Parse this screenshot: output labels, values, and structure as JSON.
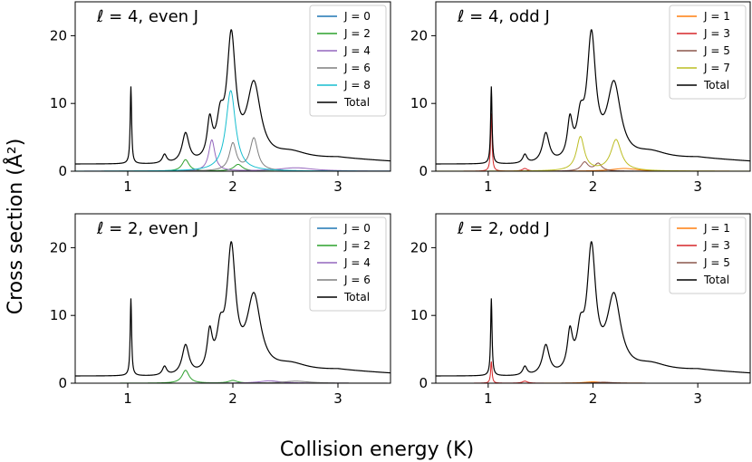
{
  "figure": {
    "ylabel": "Cross section (Å²)",
    "xlabel": "Collision energy (K)"
  },
  "chart_data": [
    {
      "type": "line",
      "title": "ℓ = 4, even J",
      "xlim": [
        0.5,
        3.5
      ],
      "ylim": [
        0,
        25
      ],
      "xticks": [
        1,
        2,
        3
      ],
      "yticks": [
        0,
        10,
        20
      ],
      "legend_position": "top-right",
      "series": [
        {
          "name": "J = 0",
          "color": "#1f77b4",
          "peaks": []
        },
        {
          "name": "J = 2",
          "color": "#2ca02c",
          "peaks": [
            [
              1.55,
              1.7,
              0.04
            ],
            [
              2.05,
              1.0,
              0.05
            ]
          ]
        },
        {
          "name": "J = 4",
          "color": "#9467bd",
          "peaks": [
            [
              1.8,
              4.6,
              0.035
            ],
            [
              2.6,
              0.5,
              0.2
            ]
          ]
        },
        {
          "name": "J = 6",
          "color": "#7f7f7f",
          "peaks": [
            [
              2.0,
              4.0,
              0.04
            ],
            [
              2.2,
              4.8,
              0.045
            ]
          ]
        },
        {
          "name": "J = 8",
          "color": "#17becf",
          "peaks": [
            [
              1.98,
              11.9,
              0.055
            ]
          ]
        },
        {
          "name": "Total",
          "color": "#000000",
          "total": true
        }
      ]
    },
    {
      "type": "line",
      "title": "ℓ = 4, odd J",
      "xlim": [
        0.5,
        3.5
      ],
      "ylim": [
        0,
        25
      ],
      "xticks": [
        1,
        2,
        3
      ],
      "yticks": [
        0,
        10,
        20
      ],
      "legend_position": "top-right",
      "series": [
        {
          "name": "J = 1",
          "color": "#ff7f0e",
          "peaks": [
            [
              2.3,
              0.4,
              0.15
            ]
          ]
        },
        {
          "name": "J = 3",
          "color": "#d62728",
          "peaks": [
            [
              1.03,
              8.5,
              0.008
            ],
            [
              1.35,
              0.4,
              0.03
            ]
          ]
        },
        {
          "name": "J = 5",
          "color": "#8c564b",
          "peaks": [
            [
              1.92,
              1.3,
              0.04
            ],
            [
              2.05,
              1.1,
              0.04
            ]
          ]
        },
        {
          "name": "J = 7",
          "color": "#bcbd22",
          "peaks": [
            [
              1.88,
              5.0,
              0.045
            ],
            [
              2.22,
              4.6,
              0.06
            ]
          ]
        },
        {
          "name": "Total",
          "color": "#000000",
          "total": true
        }
      ]
    },
    {
      "type": "line",
      "title": "ℓ = 2, even J",
      "xlim": [
        0.5,
        3.5
      ],
      "ylim": [
        0,
        25
      ],
      "xticks": [
        1,
        2,
        3
      ],
      "yticks": [
        0,
        10,
        20
      ],
      "legend_position": "top-right",
      "series": [
        {
          "name": "J = 0",
          "color": "#1f77b4",
          "peaks": []
        },
        {
          "name": "J = 2",
          "color": "#2ca02c",
          "peaks": [
            [
              1.55,
              1.9,
              0.04
            ],
            [
              2.0,
              0.4,
              0.05
            ]
          ]
        },
        {
          "name": "J = 4",
          "color": "#9467bd",
          "peaks": [
            [
              2.35,
              0.35,
              0.12
            ]
          ]
        },
        {
          "name": "J = 6",
          "color": "#7f7f7f",
          "peaks": [
            [
              2.6,
              0.3,
              0.15
            ]
          ]
        },
        {
          "name": "Total",
          "color": "#000000",
          "total": true
        }
      ]
    },
    {
      "type": "line",
      "title": "ℓ = 2, odd J",
      "xlim": [
        0.5,
        3.5
      ],
      "ylim": [
        0,
        25
      ],
      "xticks": [
        1,
        2,
        3
      ],
      "yticks": [
        0,
        10,
        20
      ],
      "legend_position": "top-right",
      "series": [
        {
          "name": "J = 1",
          "color": "#ff7f0e",
          "peaks": [
            [
              2.0,
              0.2,
              0.1
            ]
          ]
        },
        {
          "name": "J = 3",
          "color": "#d62728",
          "peaks": [
            [
              1.03,
              3.2,
              0.008
            ],
            [
              1.35,
              0.3,
              0.03
            ]
          ]
        },
        {
          "name": "J = 5",
          "color": "#8c564b",
          "peaks": [
            [
              2.1,
              0.15,
              0.1
            ]
          ]
        },
        {
          "name": "Total",
          "color": "#000000",
          "total": true
        }
      ]
    }
  ],
  "total_curve": {
    "baseline": [
      [
        0.5,
        1.0
      ],
      [
        1.0,
        0.95
      ],
      [
        1.5,
        0.7
      ],
      [
        2.0,
        0.6
      ],
      [
        2.5,
        1.2
      ],
      [
        3.0,
        1.8
      ],
      [
        3.5,
        1.4
      ]
    ],
    "peaks": [
      [
        1.03,
        11.4,
        0.008
      ],
      [
        1.35,
        1.3,
        0.025
      ],
      [
        1.55,
        4.4,
        0.04
      ],
      [
        1.78,
        5.5,
        0.03
      ],
      [
        1.88,
        5.0,
        0.04
      ],
      [
        1.985,
        18.0,
        0.05
      ],
      [
        2.2,
        11.2,
        0.08
      ],
      [
        2.55,
        1.2,
        0.2
      ]
    ]
  }
}
